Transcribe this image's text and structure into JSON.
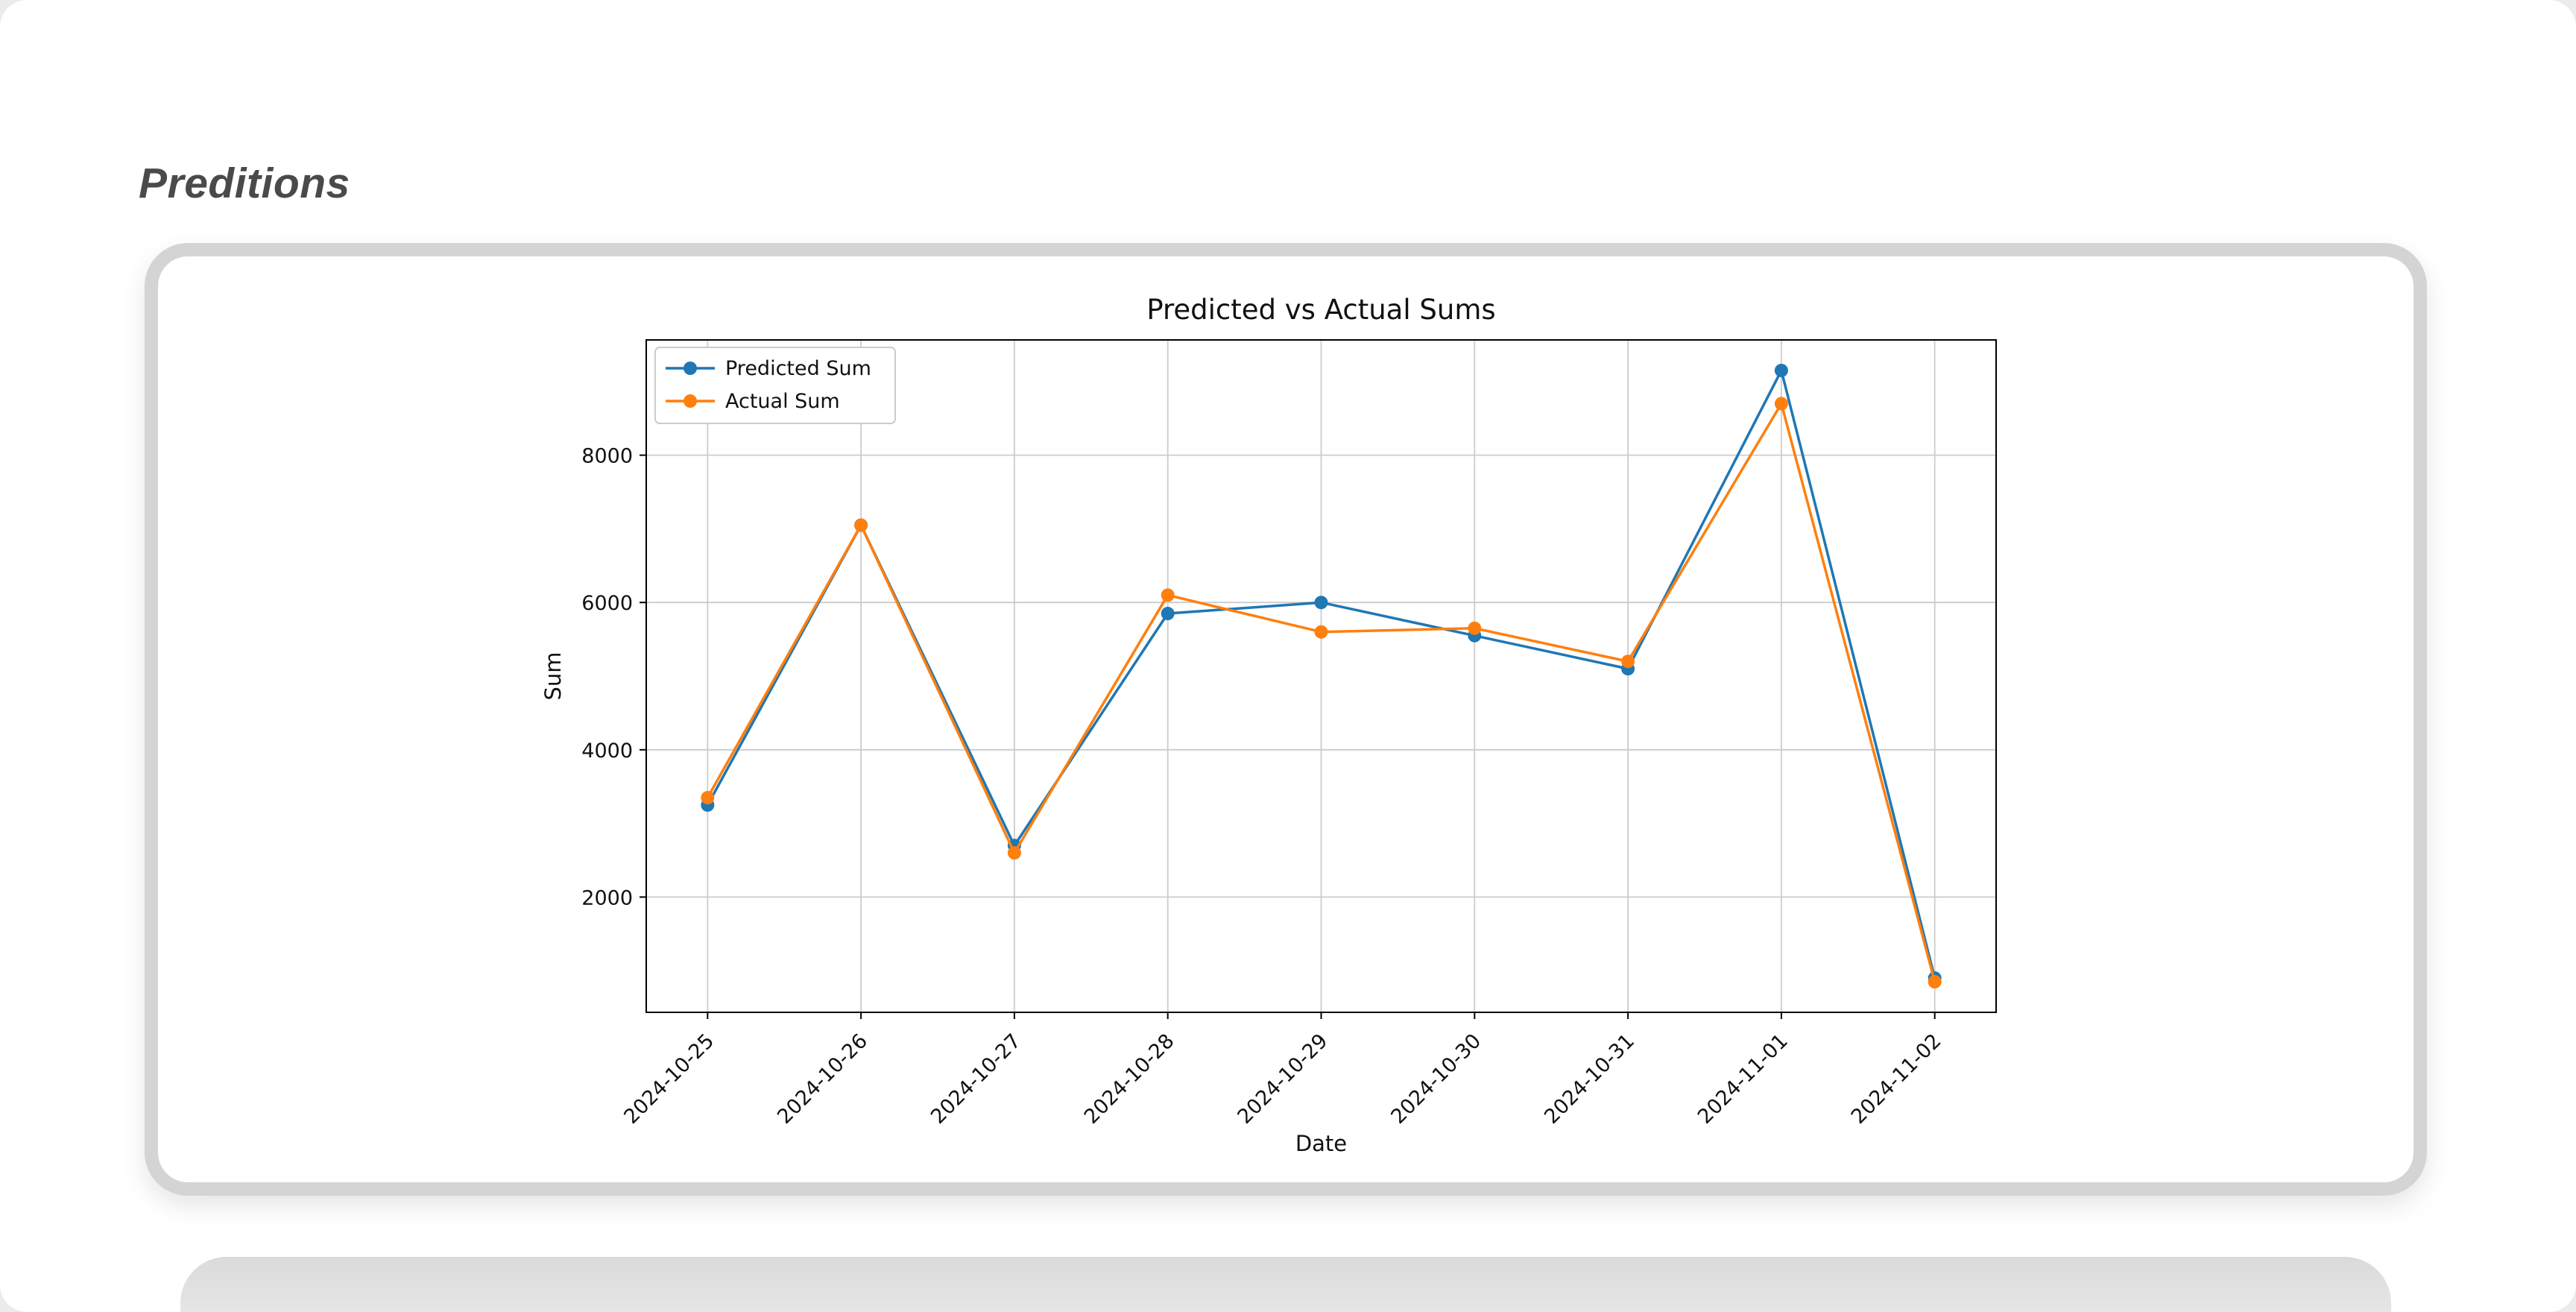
{
  "page": {
    "heading": "Preditions"
  },
  "chart_data": {
    "type": "line",
    "title": "Predicted vs Actual Sums",
    "xlabel": "Date",
    "ylabel": "Sum",
    "categories": [
      "2024-10-25",
      "2024-10-26",
      "2024-10-27",
      "2024-10-28",
      "2024-10-29",
      "2024-10-30",
      "2024-10-31",
      "2024-11-01",
      "2024-11-02"
    ],
    "series": [
      {
        "name": "Predicted Sum",
        "color": "#1f77b4",
        "values": [
          3250,
          7050,
          2700,
          5850,
          6000,
          5550,
          5100,
          9150,
          900
        ]
      },
      {
        "name": "Actual Sum",
        "color": "#ff7f0e",
        "values": [
          3350,
          7050,
          2600,
          6100,
          5600,
          5650,
          5200,
          8700,
          850
        ]
      }
    ],
    "yticks": [
      2000,
      4000,
      6000,
      8000
    ],
    "ylim": [
      435,
      9565
    ],
    "grid": true,
    "legend_position": "upper left",
    "grid_color": "#cccccc",
    "axis_color": "#000000",
    "text_color": "#111111"
  }
}
